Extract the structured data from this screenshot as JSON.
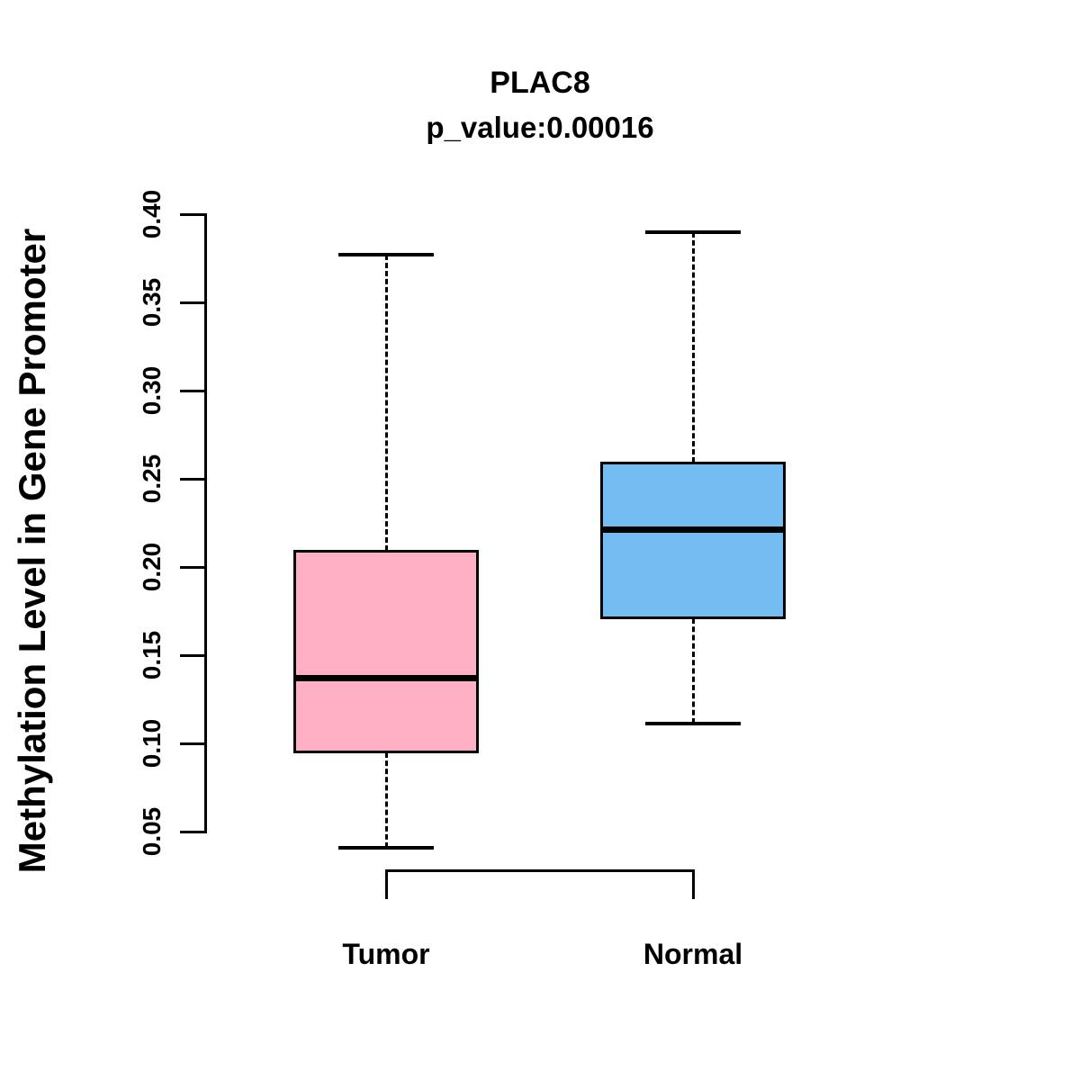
{
  "chart": {
    "title": "PLAC8",
    "subtitle": "p_value:0.00016",
    "ylabel": "Methylation Level in Gene Promoter"
  },
  "chart_data": {
    "type": "boxplot",
    "title": "PLAC8",
    "subtitle": "p_value:0.00016",
    "p_value": 0.00016,
    "gene": "PLAC8",
    "xlabel": "",
    "ylabel": "Methylation Level in Gene Promoter",
    "categories": [
      "Tumor",
      "Normal"
    ],
    "series": [
      {
        "name": "Tumor",
        "lower_whisker": 0.041,
        "q1": 0.095,
        "median": 0.137,
        "q3": 0.209,
        "upper_whisker": 0.377,
        "color": "#FFB0C4"
      },
      {
        "name": "Normal",
        "lower_whisker": 0.111,
        "q1": 0.171,
        "median": 0.221,
        "q3": 0.259,
        "upper_whisker": 0.39,
        "color": "#74BDF2"
      }
    ],
    "yticks": [
      0.05,
      0.1,
      0.15,
      0.2,
      0.25,
      0.3,
      0.35,
      0.4
    ],
    "ylim": [
      0.05,
      0.4
    ],
    "grid": false,
    "legend": "none",
    "colors": {
      "tumor": "#FFB0C4",
      "normal": "#74BDF2",
      "line": "#000000"
    }
  }
}
